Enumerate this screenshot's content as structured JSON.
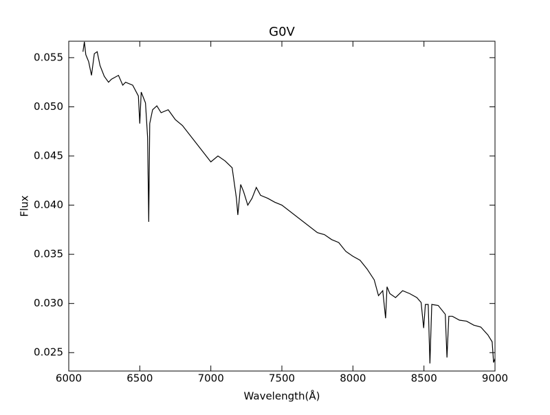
{
  "chart_data": {
    "type": "line",
    "title": "G0V",
    "xlabel": "Wavelength(Å)",
    "ylabel": "Flux",
    "color": "#000000",
    "x": [
      6100,
      6110,
      6120,
      6140,
      6160,
      6180,
      6200,
      6220,
      6250,
      6280,
      6300,
      6350,
      6380,
      6400,
      6450,
      6490,
      6500,
      6510,
      6540,
      6555,
      6563,
      6570,
      6590,
      6620,
      6650,
      6700,
      6750,
      6800,
      7000,
      7050,
      7100,
      7150,
      7180,
      7190,
      7210,
      7230,
      7260,
      7290,
      7320,
      7350,
      7400,
      7450,
      7500,
      7750,
      7800,
      7850,
      7900,
      7950,
      8000,
      8050,
      8100,
      8150,
      8180,
      8210,
      8230,
      8240,
      8260,
      8300,
      8350,
      8400,
      8450,
      8480,
      8498,
      8510,
      8530,
      8542,
      8555,
      8600,
      8650,
      8662,
      8675,
      8700,
      8750,
      8800,
      8850,
      8900,
      8950,
      8980,
      8990,
      9000
    ],
    "values": [
      0.0556,
      0.0566,
      0.0553,
      0.0546,
      0.0532,
      0.0554,
      0.0556,
      0.0542,
      0.0531,
      0.0525,
      0.0528,
      0.0532,
      0.0522,
      0.0525,
      0.0522,
      0.0511,
      0.0483,
      0.0515,
      0.0504,
      0.0469,
      0.0383,
      0.0483,
      0.0497,
      0.0501,
      0.0494,
      0.0497,
      0.0487,
      0.0481,
      0.0444,
      0.045,
      0.0445,
      0.0438,
      0.0407,
      0.039,
      0.0421,
      0.0414,
      0.04,
      0.0407,
      0.0418,
      0.041,
      0.0407,
      0.0403,
      0.04,
      0.0372,
      0.037,
      0.0365,
      0.0362,
      0.0353,
      0.0348,
      0.0344,
      0.0335,
      0.0324,
      0.0308,
      0.0313,
      0.0285,
      0.0317,
      0.031,
      0.0306,
      0.0313,
      0.031,
      0.0306,
      0.0301,
      0.0275,
      0.0299,
      0.0299,
      0.0239,
      0.0299,
      0.0298,
      0.0289,
      0.0245,
      0.0287,
      0.0287,
      0.0283,
      0.0282,
      0.0278,
      0.0276,
      0.0268,
      0.0261,
      0.024,
      0.0244
    ],
    "xlim": [
      6000,
      9000
    ],
    "xticks": [
      6000,
      6500,
      7000,
      7500,
      8000,
      8500,
      9000
    ],
    "ylim": [
      0.02313,
      0.05667
    ],
    "yticks": [
      0.025,
      {
        "value": 0.03,
        "label": "0.030"
      },
      0.035,
      {
        "value": 0.04,
        "label": "0.040"
      },
      0.045,
      {
        "value": 0.05,
        "label": "0.050"
      },
      0.055
    ]
  }
}
